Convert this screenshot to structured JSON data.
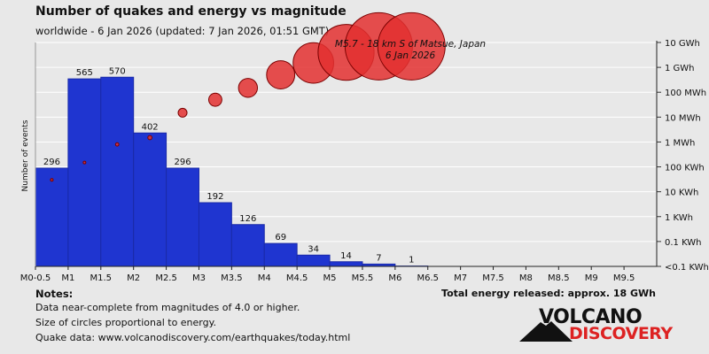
{
  "title": "Number of quakes and energy vs magnitude",
  "subtitle": "worldwide -  6 Jan 2026 (updated: 7 Jan 2026, 01:51 GMT)",
  "notes": {
    "heading": "Notes:",
    "lines": [
      "Data near-complete from magnitudes of 4.0 or higher.",
      "Size of circles proportional to energy.",
      "Quake data: www.volcanodiscovery.com/earthquakes/today.html"
    ]
  },
  "total_energy": "Total energy released: approx. 18 GWh",
  "logo": {
    "top": "VOLCANO",
    "bottom": "DISCOVERY"
  },
  "colors": {
    "bar": "#1f35d0",
    "bar_stroke": "#1a2aa8",
    "bubble": "#e33030",
    "bubble_stroke": "#7a0000",
    "grid": "#ffffff"
  },
  "chart_data": {
    "type": "bar",
    "ylabel": "Number of events",
    "categories": [
      "M0-0.5",
      "M0.5-1",
      "M1-1.5",
      "M1.5-2",
      "M2-2.5",
      "M2.5-3",
      "M3-3.5",
      "M3.5-4",
      "M4-4.5",
      "M4.5-5",
      "M5-5.5",
      "M5.5-6"
    ],
    "x_tick_labels": [
      "M0-0.5",
      "M1",
      "M1.5",
      "M2",
      "M2.5",
      "M3",
      "M3.5",
      "M4",
      "M4.5",
      "M5",
      "M5.5",
      "M6",
      "M6.5",
      "M7",
      "M7.5",
      "M8",
      "M8.5",
      "M9",
      "M9.5"
    ],
    "values": [
      296,
      565,
      570,
      402,
      296,
      192,
      126,
      69,
      34,
      14,
      7,
      1
    ],
    "ymax": 600,
    "energy_axis": {
      "label_ticks": [
        "10 GWh",
        "1 GWh",
        "100 MWh",
        "10 MWh",
        "1 MWh",
        "100 KWh",
        "10 KWh",
        "1 KWh",
        "0.1 KWh",
        "<0.1 KWh"
      ],
      "scale": "log"
    },
    "energy_series": [
      {
        "mag": 0.25,
        "energy_label": "~30 KWh"
      },
      {
        "mag": 0.75,
        "energy_label": "~150 KWh"
      },
      {
        "mag": 1.25,
        "energy_label": "~800 KWh"
      },
      {
        "mag": 1.75,
        "energy_label": "~1.5 MWh"
      },
      {
        "mag": 2.25,
        "energy_label": "~15 MWh"
      },
      {
        "mag": 2.75,
        "energy_label": "~50 MWh"
      },
      {
        "mag": 3.25,
        "energy_label": "~150 MWh"
      },
      {
        "mag": 3.75,
        "energy_label": "~500 MWh"
      },
      {
        "mag": 4.25,
        "energy_label": "~1.5 GWh"
      },
      {
        "mag": 4.75,
        "energy_label": "~4 GWh"
      },
      {
        "mag": 5.25,
        "energy_label": "~7 GWh"
      },
      {
        "mag": 5.75,
        "energy_label": "~7 GWh"
      }
    ],
    "annotation": {
      "line1": "M5.7 - 18 km S of Matsue, Japan",
      "line2": "6 Jan 2026"
    },
    "grid": true
  }
}
